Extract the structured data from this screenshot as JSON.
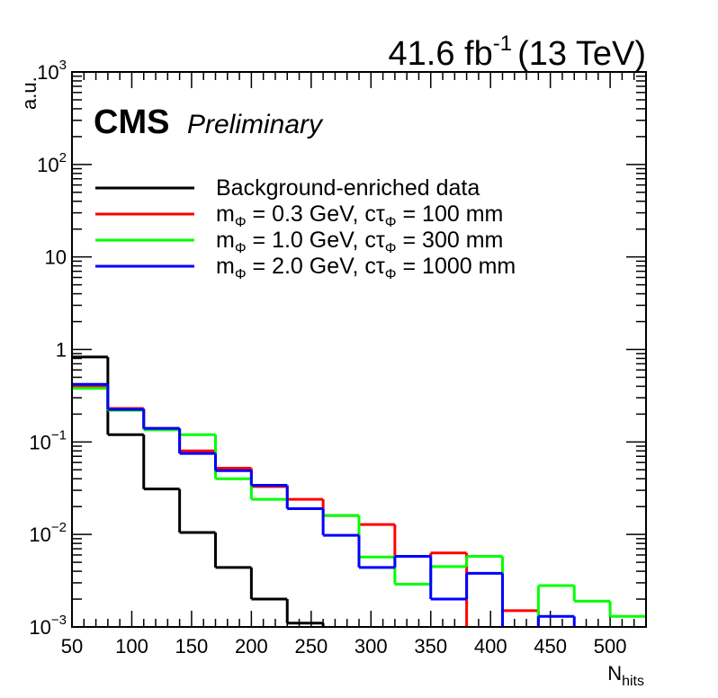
{
  "header": {
    "lumi_value": "41.6 fb",
    "lumi_exp": "-1",
    "energy": "(13 TeV)",
    "experiment": "CMS",
    "status": "Preliminary"
  },
  "axes": {
    "ylabel": "a.u.",
    "xlabel_main": "N",
    "xlabel_sub": "hits"
  },
  "legend": [
    {
      "text": "Background-enriched data"
    },
    {
      "m": "m",
      "sub": "Φ",
      "mid": " = 0.3 GeV, cτ",
      "sub2": "Φ",
      "end": " = 100 mm"
    },
    {
      "m": "m",
      "sub": "Φ",
      "mid": " = 1.0 GeV, cτ",
      "sub2": "Φ",
      "end": " = 300 mm"
    },
    {
      "m": "m",
      "sub": "Φ",
      "mid": " = 2.0 GeV, cτ",
      "sub2": "Φ",
      "end": " = 1000 mm"
    }
  ],
  "chart_data": {
    "type": "line",
    "style": "step histogram",
    "xlim": [
      50,
      530
    ],
    "ylim": [
      0.001,
      1000
    ],
    "ylog": true,
    "grid": false,
    "legend_position": "top-left",
    "bin_edges": [
      50,
      80,
      110,
      140,
      170,
      200,
      230,
      260,
      290,
      320,
      350,
      380,
      410,
      440,
      470,
      500,
      530
    ],
    "x_ticks": [
      50,
      100,
      150,
      200,
      250,
      300,
      350,
      400,
      450,
      500
    ],
    "y_ticks": [
      {
        "value": 0.001,
        "base": "10",
        "exp": "−3"
      },
      {
        "value": 0.01,
        "base": "10",
        "exp": "−2"
      },
      {
        "value": 0.1,
        "base": "10",
        "exp": "−1"
      },
      {
        "value": 1,
        "base": "1",
        "exp": ""
      },
      {
        "value": 10,
        "base": "10",
        "exp": ""
      },
      {
        "value": 100,
        "base": "10",
        "exp": "2"
      },
      {
        "value": 1000,
        "base": "10",
        "exp": "3"
      }
    ],
    "series": [
      {
        "name": "Background-enriched data",
        "color": "#000000",
        "values": [
          0.83,
          0.12,
          0.031,
          0.0105,
          0.0044,
          0.002,
          0.0011,
          0,
          0,
          0,
          0,
          0,
          0,
          0,
          0,
          0
        ]
      },
      {
        "name": "mΦ = 0.3 GeV, cτΦ = 100 mm",
        "color": "#ff0000",
        "values": [
          0.4,
          0.23,
          0.14,
          0.08,
          0.052,
          0.033,
          0.024,
          0.016,
          0.0128,
          0.0058,
          0.0063,
          0,
          0.0015,
          0,
          0,
          0
        ]
      },
      {
        "name": "mΦ = 1.0 GeV, cτΦ = 300 mm",
        "color": "#00ff00",
        "values": [
          0.38,
          0.22,
          0.135,
          0.12,
          0.04,
          0.024,
          0.019,
          0.016,
          0.0057,
          0.0029,
          0.0045,
          0.0058,
          0,
          0.0028,
          0.0019,
          0.0013
        ]
      },
      {
        "name": "mΦ = 2.0 GeV, cτΦ = 1000 mm",
        "color": "#0000ff",
        "values": [
          0.42,
          0.225,
          0.14,
          0.075,
          0.049,
          0.034,
          0.019,
          0.0098,
          0.0044,
          0.0058,
          0.002,
          0.0038,
          0,
          0.0013,
          0,
          0
        ]
      }
    ]
  }
}
